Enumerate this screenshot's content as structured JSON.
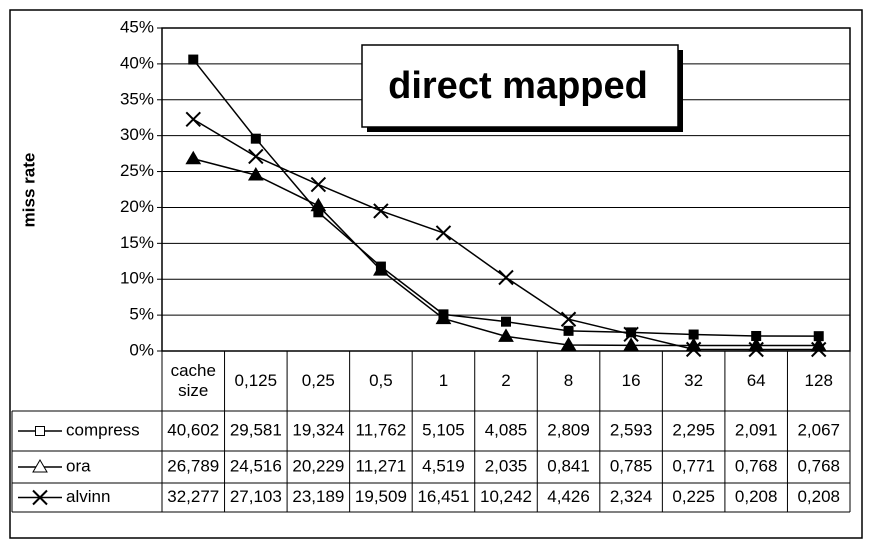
{
  "chart_data": {
    "type": "line",
    "title": "direct mapped",
    "y_label": "miss rate",
    "categories": [
      "cache size",
      "0,125",
      "0,25",
      "0,5",
      "1",
      "2",
      "8",
      "16",
      "32",
      "64",
      "128"
    ],
    "series": [
      {
        "name": "compress",
        "color": "#000000",
        "marker": "square",
        "values": [
          40.602,
          29.581,
          19.324,
          11.762,
          5.105,
          4.085,
          2.809,
          2.593,
          2.295,
          2.091,
          2.067
        ],
        "value_labels": [
          "40,602",
          "29,581",
          "19,324",
          "11,762",
          "5,105",
          "4,085",
          "2,809",
          "2,593",
          "2,295",
          "2,091",
          "2,067"
        ]
      },
      {
        "name": "ora",
        "color": "#000000",
        "marker": "triangle",
        "values": [
          26.789,
          24.516,
          20.229,
          11.271,
          4.519,
          2.035,
          0.841,
          0.785,
          0.771,
          0.768,
          0.768
        ],
        "value_labels": [
          "26,789",
          "24,516",
          "20,229",
          "11,271",
          "4,519",
          "2,035",
          "0,841",
          "0,785",
          "0,771",
          "0,768",
          "0,768"
        ]
      },
      {
        "name": "alvinn",
        "color": "#000000",
        "marker": "x",
        "values": [
          32.277,
          27.103,
          23.189,
          19.509,
          16.451,
          10.242,
          4.426,
          2.324,
          0.225,
          0.208,
          0.208
        ],
        "value_labels": [
          "32,277",
          "27,103",
          "23,189",
          "19,509",
          "16,451",
          "10,242",
          "4,426",
          "2,324",
          "0,225",
          "0,208",
          "0,208"
        ]
      }
    ],
    "ylim": [
      0,
      45
    ],
    "yticks": [
      {
        "value": 0,
        "label": "0%"
      },
      {
        "value": 5,
        "label": "5%"
      },
      {
        "value": 10,
        "label": "10%"
      },
      {
        "value": 15,
        "label": "15%"
      },
      {
        "value": 20,
        "label": "20%"
      },
      {
        "value": 25,
        "label": "25%"
      },
      {
        "value": 30,
        "label": "30%"
      },
      {
        "value": 35,
        "label": "35%"
      },
      {
        "value": 40,
        "label": "40%"
      },
      {
        "value": 45,
        "label": "45%"
      }
    ],
    "grid": true
  }
}
